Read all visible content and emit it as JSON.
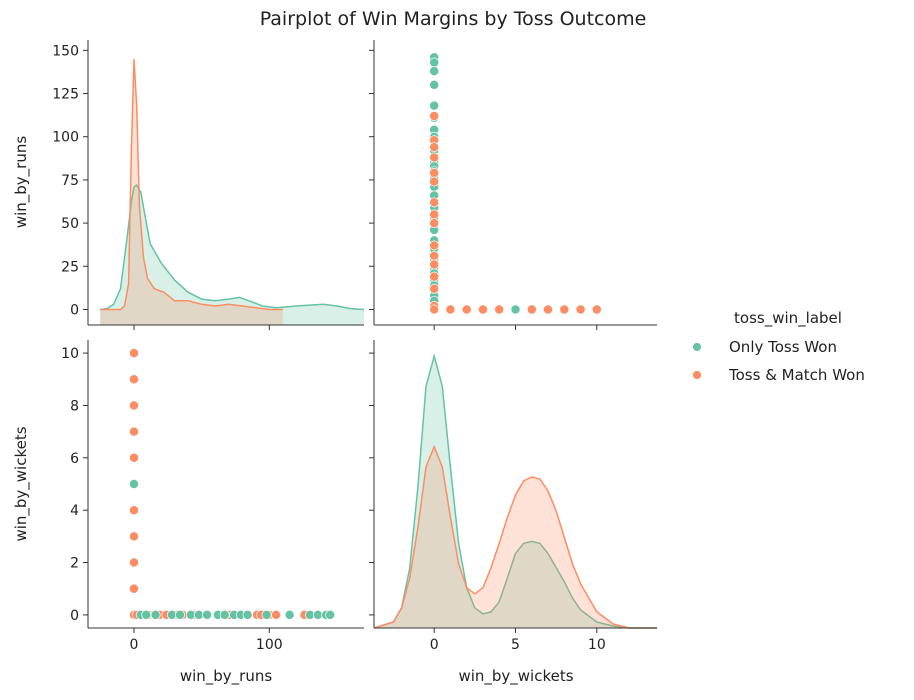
{
  "chart_data": {
    "type": "pairplot",
    "title": "Pairplot of Win Margins by Toss Outcome",
    "variables": [
      "win_by_runs",
      "win_by_wickets"
    ],
    "hue": "toss_win_label",
    "legend": {
      "title": "toss_win_label",
      "placement": "right",
      "entries": [
        "Only Toss Won",
        "Toss & Match Won"
      ]
    },
    "colors": {
      "Only Toss Won": "#66c2a5",
      "Toss & Match Won": "#fc8d62"
    },
    "axes": {
      "win_by_runs": {
        "label": "win_by_runs",
        "range": [
          -34,
          170
        ],
        "ticks": [
          {
            "v": 0,
            "label": "0"
          },
          {
            "v": 100,
            "label": "100"
          }
        ]
      },
      "win_by_runs_left": {
        "range": [
          -9,
          156
        ],
        "ticks": [
          {
            "v": 0,
            "label": "0"
          },
          {
            "v": 25,
            "label": "25"
          },
          {
            "v": 50,
            "label": "50"
          },
          {
            "v": 75,
            "label": "75"
          },
          {
            "v": 100,
            "label": "100"
          },
          {
            "v": 125,
            "label": "125"
          },
          {
            "v": 150,
            "label": "150"
          }
        ]
      },
      "win_by_wickets": {
        "label": "win_by_wickets",
        "range": [
          -0.5,
          10.5
        ],
        "ticks": [
          {
            "v": 0,
            "label": "0"
          },
          {
            "v": 2,
            "label": "2"
          },
          {
            "v": 4,
            "label": "4"
          },
          {
            "v": 6,
            "label": "6"
          },
          {
            "v": 8,
            "label": "8"
          },
          {
            "v": 10,
            "label": "10"
          }
        ]
      },
      "win_by_wickets_bottom": {
        "range": [
          -3.7,
          13.7
        ],
        "ticks": [
          {
            "v": 0,
            "label": "0"
          },
          {
            "v": 5,
            "label": "5"
          },
          {
            "v": 10,
            "label": "10"
          }
        ]
      }
    },
    "diagonal": {
      "win_by_runs": [
        {
          "name": "Only Toss Won",
          "x": [
            -25,
            -20,
            -15,
            -10,
            -5,
            -2,
            0,
            2,
            5,
            8,
            12,
            20,
            30,
            40,
            50,
            60,
            70,
            78,
            85,
            95,
            105,
            120,
            140,
            150,
            160,
            170
          ],
          "y": [
            0,
            0.5,
            3,
            12,
            42,
            62,
            71,
            72,
            68,
            55,
            38,
            27,
            17,
            10,
            6,
            5,
            6,
            7,
            5,
            2,
            1,
            2,
            3,
            2,
            0.5,
            0
          ]
        },
        {
          "name": "Toss & Match Won",
          "x": [
            -25,
            -20,
            -10,
            -7,
            -4,
            -2,
            0,
            2,
            4,
            7,
            10,
            15,
            22,
            30,
            40,
            50,
            60,
            70,
            80,
            90,
            100,
            110
          ],
          "y": [
            0,
            0,
            0,
            2,
            15,
            90,
            145,
            118,
            60,
            30,
            18,
            12,
            10,
            5,
            5,
            3,
            2,
            3,
            2,
            1,
            0,
            0
          ]
        }
      ],
      "win_by_wickets": [
        {
          "name": "Only Toss Won",
          "x": [
            -3.7,
            -2.5,
            -2,
            -1.5,
            -1,
            -0.5,
            0,
            0.5,
            1,
            1.5,
            2,
            2.5,
            3,
            3.5,
            4,
            4.5,
            5,
            5.5,
            6,
            6.5,
            7,
            7.5,
            8,
            8.5,
            9,
            10,
            11,
            12,
            13.7
          ],
          "y": [
            0,
            0.003,
            0.01,
            0.03,
            0.07,
            0.12,
            0.135,
            0.12,
            0.08,
            0.042,
            0.02,
            0.01,
            0.007,
            0.008,
            0.013,
            0.025,
            0.037,
            0.042,
            0.043,
            0.042,
            0.037,
            0.03,
            0.023,
            0.015,
            0.009,
            0.003,
            0.001,
            0,
            0
          ]
        },
        {
          "name": "Toss & Match Won",
          "x": [
            -3.7,
            -2.5,
            -2,
            -1.5,
            -1,
            -0.5,
            0,
            0.5,
            1,
            1.5,
            2,
            2.5,
            3,
            3.5,
            4,
            4.5,
            5,
            5.5,
            6,
            6.5,
            7,
            7.5,
            8,
            8.5,
            9,
            10,
            11,
            12,
            13.7
          ],
          "y": [
            0,
            0.003,
            0.01,
            0.025,
            0.05,
            0.08,
            0.09,
            0.08,
            0.055,
            0.032,
            0.02,
            0.017,
            0.02,
            0.03,
            0.042,
            0.055,
            0.066,
            0.073,
            0.075,
            0.074,
            0.068,
            0.058,
            0.045,
            0.032,
            0.022,
            0.008,
            0.002,
            0,
            0
          ]
        }
      ]
    },
    "scatter": {
      "runs_vs_wickets": [
        {
          "name": "Toss & Match Won",
          "points": [
            [
              0,
              0
            ],
            [
              0,
              1
            ],
            [
              0,
              2
            ],
            [
              0,
              3
            ],
            [
              0,
              4
            ],
            [
              0,
              5
            ],
            [
              0,
              6
            ],
            [
              0,
              7
            ],
            [
              0,
              8
            ],
            [
              0,
              9
            ],
            [
              0,
              10
            ],
            [
              2,
              0
            ],
            [
              6,
              0
            ],
            [
              11,
              0
            ],
            [
              15,
              0
            ],
            [
              19,
              0
            ],
            [
              24,
              0
            ],
            [
              32,
              0
            ],
            [
              36,
              0
            ],
            [
              44,
              0
            ],
            [
              53,
              0
            ],
            [
              62,
              0
            ],
            [
              71,
              0
            ],
            [
              91,
              0
            ],
            [
              94,
              0
            ],
            [
              100,
              0
            ],
            [
              105,
              0
            ],
            [
              126,
              0
            ]
          ]
        },
        {
          "name": "Only Toss Won",
          "points": [
            [
              0,
              5
            ],
            [
              5,
              0
            ],
            [
              9,
              0
            ],
            [
              16,
              0
            ],
            [
              28,
              0
            ],
            [
              34,
              0
            ],
            [
              42,
              0
            ],
            [
              48,
              0
            ],
            [
              54,
              0
            ],
            [
              62,
              0
            ],
            [
              67,
              0
            ],
            [
              74,
              0
            ],
            [
              79,
              0
            ],
            [
              84,
              0
            ],
            [
              98,
              0
            ],
            [
              115,
              0
            ],
            [
              130,
              0
            ],
            [
              136,
              0
            ],
            [
              142,
              0
            ],
            [
              145,
              0
            ]
          ]
        }
      ],
      "wickets_vs_runs": [
        {
          "name": "Only Toss Won",
          "points": [
            [
              0,
              146
            ],
            [
              0,
              143
            ],
            [
              0,
              138
            ],
            [
              0,
              130
            ],
            [
              0,
              118
            ],
            [
              0,
              111
            ],
            [
              0,
              104
            ],
            [
              0,
              100
            ],
            [
              0,
              92
            ],
            [
              0,
              85
            ],
            [
              0,
              83
            ],
            [
              0,
              80
            ],
            [
              0,
              76
            ],
            [
              0,
              71
            ],
            [
              0,
              66
            ],
            [
              0,
              59
            ],
            [
              0,
              53
            ],
            [
              0,
              46
            ],
            [
              0,
              40
            ],
            [
              0,
              35
            ],
            [
              0,
              29
            ],
            [
              0,
              24
            ],
            [
              0,
              21
            ],
            [
              0,
              17
            ],
            [
              0,
              14
            ],
            [
              0,
              11
            ],
            [
              0,
              8
            ],
            [
              0,
              5
            ],
            [
              5,
              0
            ]
          ]
        },
        {
          "name": "Toss & Match Won",
          "points": [
            [
              0,
              112
            ],
            [
              0,
              98
            ],
            [
              0,
              94
            ],
            [
              0,
              88
            ],
            [
              0,
              79
            ],
            [
              0,
              74
            ],
            [
              0,
              62
            ],
            [
              0,
              55
            ],
            [
              0,
              50
            ],
            [
              0,
              37
            ],
            [
              0,
              31
            ],
            [
              0,
              26
            ],
            [
              0,
              19
            ],
            [
              0,
              12
            ],
            [
              0,
              2
            ],
            [
              0,
              0
            ],
            [
              1,
              0
            ],
            [
              2,
              0
            ],
            [
              3,
              0
            ],
            [
              4,
              0
            ],
            [
              6,
              0
            ],
            [
              7,
              0
            ],
            [
              8,
              0
            ],
            [
              9,
              0
            ],
            [
              10,
              0
            ]
          ]
        }
      ]
    }
  }
}
